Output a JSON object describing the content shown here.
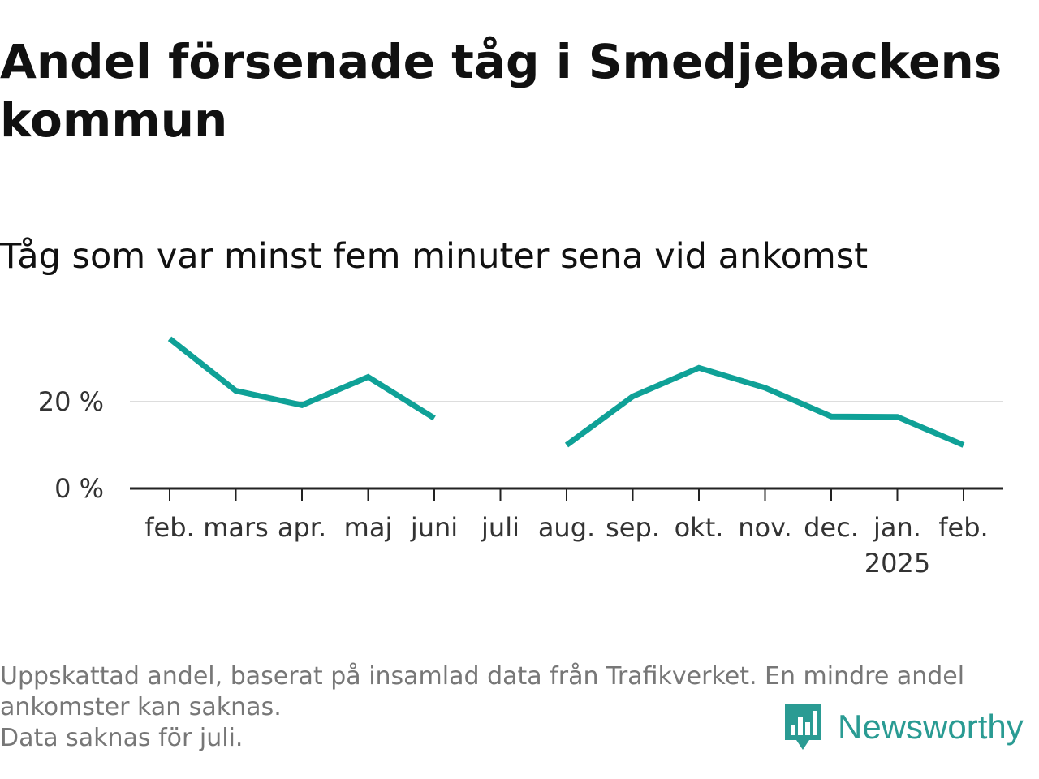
{
  "title": "Andel försenade tåg i Smedjebackens kommun",
  "subtitle": "Tåg som var minst fem minuter sena vid ankomst",
  "colors": {
    "line": "#0fa197",
    "grid": "#dddddd",
    "axis": "#222222",
    "brand": "#2a9b93"
  },
  "chart_data": {
    "type": "line",
    "categories": [
      "feb.",
      "mars",
      "apr.",
      "maj",
      "juni",
      "juli",
      "aug.",
      "sep.",
      "okt.",
      "nov.",
      "dec.",
      "jan.",
      "feb."
    ],
    "category_sublabels": [
      "",
      "",
      "",
      "",
      "",
      "",
      "",
      "",
      "",
      "",
      "",
      "2025",
      ""
    ],
    "series": [
      {
        "values": [
          34.5,
          22.5,
          19.2,
          25.7,
          16.2,
          null,
          10.0,
          21.2,
          27.8,
          23.2,
          16.6,
          16.5,
          10.0
        ]
      }
    ],
    "ylim": [
      0,
      40
    ],
    "yticks": [
      0,
      20
    ],
    "ytick_labels": [
      "0 %",
      "20 %"
    ],
    "grid": true,
    "xlabel": "",
    "ylabel": ""
  },
  "footnote": {
    "line1": "Uppskattad andel, baserat på insamlad data från Trafikverket. En mindre andel",
    "line2": "ankomster kan saknas.",
    "line3": "Data saknas för juli."
  },
  "logo": {
    "text": "Newsworthy",
    "icon": "bar-chart-speech-bubble-icon"
  }
}
